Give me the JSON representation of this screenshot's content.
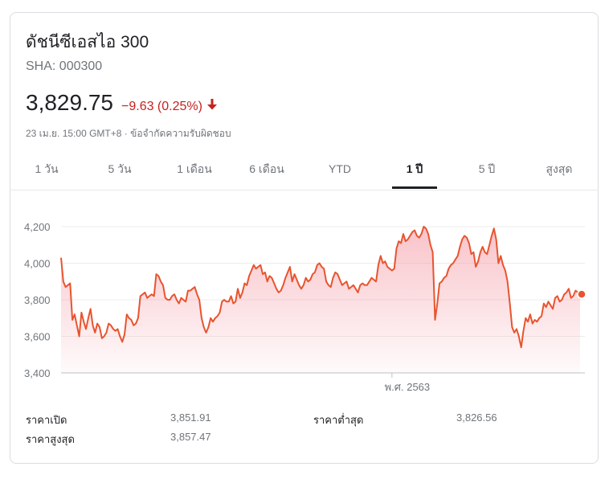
{
  "header": {
    "title": "ดัชนีซีเอสไอ 300",
    "ticker": "SHA: 000300",
    "price": "3,829.75",
    "change": "−9.63 (0.25%)",
    "change_color": "#c5221f",
    "arrow_icon": "arrow-down-icon",
    "timestamp": "23 เม.ย. 15:00 GMT+8",
    "separator": " · ",
    "disclaimer": "ข้อจำกัดความรับผิดชอบ"
  },
  "tabs": [
    {
      "label": "1 วัน",
      "active": false
    },
    {
      "label": "5 วัน",
      "active": false
    },
    {
      "label": "1 เดือน",
      "active": false
    },
    {
      "label": "6 เดือน",
      "active": false
    },
    {
      "label": "YTD",
      "active": false
    },
    {
      "label": "1 ปี",
      "active": true
    },
    {
      "label": "5 ปี",
      "active": false
    },
    {
      "label": "สูงสุด",
      "active": false
    }
  ],
  "chart_data": {
    "type": "area",
    "line_color": "#e8542f",
    "fill_color": "#f5a3ad",
    "ylim": [
      3400,
      4250
    ],
    "yticks": [
      "4,200",
      "4,000",
      "3,800",
      "3,600",
      "3,400"
    ],
    "ytick_values": [
      4200,
      4000,
      3800,
      3600,
      3400
    ],
    "x_marker_label": "พ.ศ. 2563",
    "x_marker_index": 146,
    "grid": true,
    "values": [
      4030,
      3900,
      3870,
      3880,
      3890,
      3690,
      3720,
      3660,
      3600,
      3730,
      3680,
      3640,
      3700,
      3750,
      3660,
      3620,
      3670,
      3650,
      3590,
      3600,
      3620,
      3670,
      3660,
      3640,
      3630,
      3640,
      3600,
      3570,
      3610,
      3720,
      3700,
      3690,
      3660,
      3670,
      3700,
      3820,
      3830,
      3840,
      3810,
      3820,
      3830,
      3820,
      3940,
      3930,
      3900,
      3880,
      3810,
      3800,
      3800,
      3820,
      3830,
      3800,
      3780,
      3810,
      3800,
      3790,
      3850,
      3850,
      3860,
      3870,
      3830,
      3800,
      3700,
      3650,
      3620,
      3650,
      3700,
      3680,
      3700,
      3710,
      3730,
      3790,
      3800,
      3790,
      3790,
      3820,
      3780,
      3790,
      3860,
      3810,
      3840,
      3890,
      3880,
      3930,
      3960,
      3990,
      3970,
      3980,
      3990,
      3940,
      3950,
      3900,
      3930,
      3920,
      3890,
      3860,
      3840,
      3850,
      3880,
      3920,
      3950,
      3980,
      3900,
      3940,
      3910,
      3880,
      3860,
      3880,
      3920,
      3900,
      3910,
      3940,
      3950,
      3990,
      4000,
      3980,
      3970,
      3900,
      3880,
      3870,
      3920,
      3950,
      3940,
      3910,
      3880,
      3890,
      3900,
      3860,
      3870,
      3880,
      3860,
      3840,
      3880,
      3890,
      3880,
      3880,
      3900,
      3920,
      3910,
      3900,
      3990,
      4040,
      4000,
      4010,
      3980,
      3970,
      3960,
      3970,
      4080,
      4120,
      4110,
      4160,
      4120,
      4130,
      4150,
      4170,
      4180,
      4150,
      4140,
      4160,
      4200,
      4190,
      4160,
      4100,
      4060,
      3690,
      3780,
      3890,
      3900,
      3920,
      3930,
      3970,
      3990,
      4000,
      4020,
      4040,
      4090,
      4130,
      4150,
      4140,
      4110,
      4050,
      4060,
      3980,
      4010,
      4060,
      4090,
      4060,
      4050,
      4100,
      4150,
      4190,
      4130,
      4000,
      4040,
      3990,
      3960,
      3900,
      3780,
      3650,
      3620,
      3640,
      3600,
      3540,
      3630,
      3700,
      3680,
      3720,
      3670,
      3690,
      3680,
      3700,
      3710,
      3780,
      3760,
      3790,
      3770,
      3750,
      3810,
      3820,
      3790,
      3800,
      3830,
      3840,
      3860,
      3810,
      3820,
      3850,
      3840,
      3830
    ]
  },
  "stats": [
    {
      "label": "ราคาเปิด",
      "value": "3,851.91"
    },
    {
      "label": "ราคาต่ำสุด",
      "value": "3,826.56"
    },
    {
      "label": "ราคาสูงสุด",
      "value": "3,857.47"
    }
  ]
}
